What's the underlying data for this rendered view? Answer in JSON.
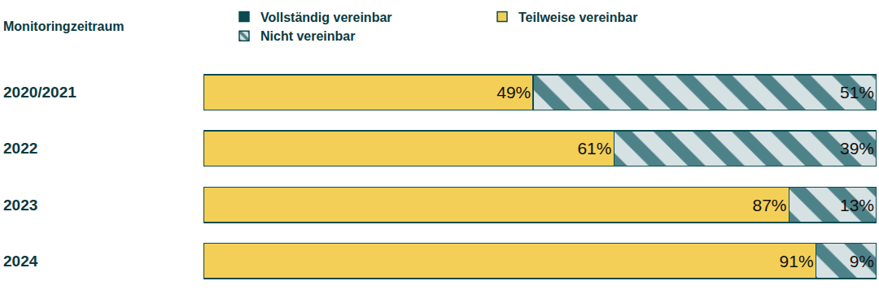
{
  "chart_data": {
    "type": "bar",
    "orientation": "horizontal",
    "stacked": true,
    "ylabel": "Monitoringzeitraum",
    "categories": [
      "2020/2021",
      "2022",
      "2023",
      "2024"
    ],
    "series": [
      {
        "name": "Vollständig vereinbar",
        "color": "#0b4a50",
        "values": [
          null,
          null,
          null,
          null
        ]
      },
      {
        "name": "Teilweise vereinbar",
        "color": "#f4cf57",
        "values": [
          49,
          61,
          87,
          91
        ],
        "value_labels": [
          "49%",
          "61%",
          "87%",
          "91%"
        ]
      },
      {
        "name": "Nicht vereinbar",
        "color": "#4e8289",
        "marker": "hatched",
        "values": [
          51,
          39,
          13,
          9
        ],
        "value_labels": [
          "51%",
          "39%",
          "13%",
          "9%"
        ]
      }
    ],
    "xlim": [
      0,
      100
    ],
    "data_labels": true,
    "tick_labels": "y",
    "legend": "top",
    "grid": false
  }
}
